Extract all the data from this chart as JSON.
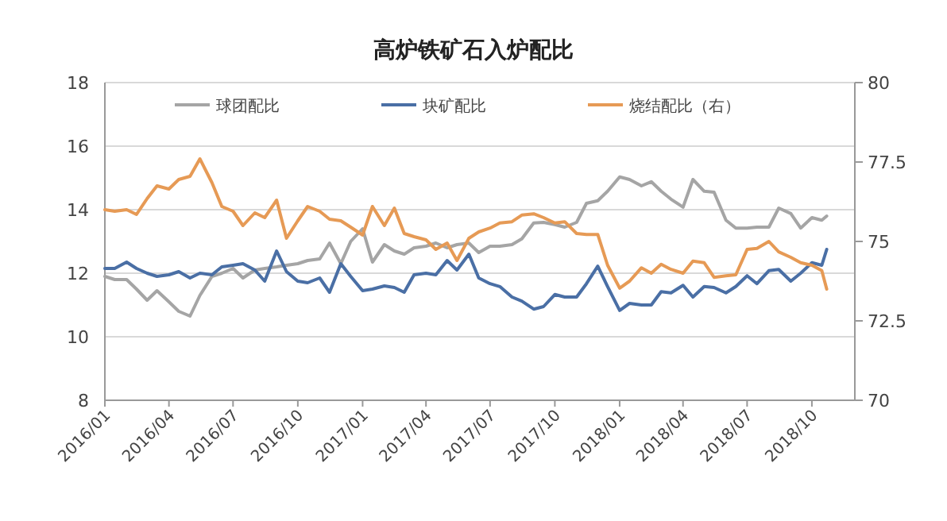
{
  "chart_data": {
    "type": "line",
    "title": "高炉铁矿石入炉配比",
    "x": [
      "2016-01-01",
      "2016-01-15",
      "2016-02-01",
      "2016-02-15",
      "2016-03-01",
      "2016-03-15",
      "2016-04-01",
      "2016-04-15",
      "2016-05-01",
      "2016-05-15",
      "2016-06-01",
      "2016-06-15",
      "2016-07-01",
      "2016-07-15",
      "2016-08-01",
      "2016-08-15",
      "2016-09-01",
      "2016-09-15",
      "2016-10-01",
      "2016-10-15",
      "2016-11-01",
      "2016-11-15",
      "2016-12-01",
      "2016-12-15",
      "2017-01-01",
      "2017-01-15",
      "2017-02-01",
      "2017-02-15",
      "2017-03-01",
      "2017-03-15",
      "2017-04-01",
      "2017-04-15",
      "2017-05-01",
      "2017-05-15",
      "2017-06-01",
      "2017-06-15",
      "2017-07-01",
      "2017-07-15",
      "2017-08-01",
      "2017-08-15",
      "2017-09-01",
      "2017-09-15",
      "2017-10-01",
      "2017-10-15",
      "2017-11-01",
      "2017-11-15",
      "2017-12-01",
      "2017-12-15",
      "2018-01-01",
      "2018-01-15",
      "2018-02-01",
      "2018-02-15",
      "2018-03-01",
      "2018-03-15",
      "2018-04-01",
      "2018-04-15",
      "2018-05-01",
      "2018-05-15",
      "2018-06-01",
      "2018-06-15",
      "2018-07-01",
      "2018-07-15",
      "2018-08-01",
      "2018-08-15",
      "2018-09-01",
      "2018-09-15",
      "2018-10-01",
      "2018-10-15",
      "2018-10-22"
    ],
    "series": [
      {
        "name": "球团配比",
        "color": "#a5a5a5",
        "values": [
          11.9,
          11.8,
          11.8,
          11.5,
          11.15,
          11.45,
          11.1,
          10.8,
          10.65,
          11.3,
          11.9,
          12.0,
          12.15,
          11.85,
          12.1,
          12.15,
          12.2,
          12.25,
          12.3,
          12.4,
          12.45,
          12.95,
          12.3,
          13.0,
          13.4,
          12.35,
          12.9,
          12.7,
          12.6,
          12.8,
          12.85,
          12.95,
          12.8,
          12.9,
          12.95,
          12.65,
          12.85,
          12.85,
          12.9,
          13.08,
          13.58,
          13.6,
          13.53,
          13.45,
          13.6,
          14.2,
          14.28,
          14.58,
          15.03,
          14.95,
          14.75,
          14.88,
          14.58,
          14.33,
          14.08,
          14.95,
          14.58,
          14.55,
          13.67,
          13.42,
          13.42,
          13.45,
          13.45,
          14.05,
          13.88,
          13.42,
          13.75,
          13.67,
          13.8
        ]
      },
      {
        "name": "块矿配比",
        "color": "#4a6fa5",
        "values": [
          12.15,
          12.15,
          12.35,
          12.15,
          12.0,
          11.9,
          11.95,
          12.05,
          11.85,
          12.0,
          11.95,
          12.2,
          12.25,
          12.3,
          12.1,
          11.75,
          12.7,
          12.05,
          11.75,
          11.7,
          11.85,
          11.4,
          12.3,
          11.9,
          11.45,
          11.5,
          11.6,
          11.55,
          11.4,
          11.95,
          12.0,
          11.95,
          12.4,
          12.1,
          12.6,
          11.85,
          11.67,
          11.58,
          11.25,
          11.12,
          10.87,
          10.95,
          11.33,
          11.25,
          11.25,
          11.67,
          12.22,
          11.58,
          10.83,
          11.05,
          11.0,
          11.0,
          11.42,
          11.38,
          11.62,
          11.25,
          11.58,
          11.55,
          11.38,
          11.58,
          11.92,
          11.67,
          12.08,
          12.12,
          11.75,
          12.0,
          12.33,
          12.25,
          12.75
        ]
      },
      {
        "name": "烧结配比（右）",
        "color": "#e69a55",
        "axis": "y2",
        "values": [
          76.0,
          75.95,
          76.0,
          75.85,
          76.35,
          76.75,
          76.65,
          76.95,
          77.05,
          77.6,
          76.85,
          76.1,
          75.95,
          75.5,
          75.9,
          75.75,
          76.3,
          75.1,
          75.65,
          76.1,
          75.95,
          75.7,
          75.65,
          75.45,
          75.2,
          76.1,
          75.5,
          76.05,
          75.25,
          75.15,
          75.05,
          74.75,
          74.95,
          74.4,
          75.1,
          75.3,
          75.42,
          75.58,
          75.62,
          75.83,
          75.87,
          75.75,
          75.58,
          75.62,
          75.25,
          75.22,
          75.22,
          74.25,
          73.53,
          73.75,
          74.17,
          74.0,
          74.28,
          74.12,
          74.0,
          74.38,
          74.33,
          73.87,
          73.92,
          73.95,
          74.75,
          74.78,
          75.0,
          74.67,
          74.5,
          74.33,
          74.25,
          74.08,
          73.5
        ]
      }
    ],
    "xlim": [
      "2016-01-01",
      "2018-12-01"
    ],
    "xticks": [
      {
        "value": "2016-01-01",
        "label": "2016/01"
      },
      {
        "value": "2016-04-01",
        "label": "2016/04"
      },
      {
        "value": "2016-07-01",
        "label": "2016/07"
      },
      {
        "value": "2016-10-01",
        "label": "2016/10"
      },
      {
        "value": "2017-01-01",
        "label": "2017/01"
      },
      {
        "value": "2017-04-01",
        "label": "2017/04"
      },
      {
        "value": "2017-07-01",
        "label": "2017/07"
      },
      {
        "value": "2017-10-01",
        "label": "2017/10"
      },
      {
        "value": "2018-01-01",
        "label": "2018/01"
      },
      {
        "value": "2018-04-01",
        "label": "2018/04"
      },
      {
        "value": "2018-07-01",
        "label": "2018/07"
      },
      {
        "value": "2018-10-01",
        "label": "2018/10"
      }
    ],
    "ylim": [
      8,
      18
    ],
    "yticks": [
      8,
      10,
      12,
      14,
      16,
      18
    ],
    "y2lim": [
      70,
      80
    ],
    "y2ticks": [
      70,
      72.5,
      75,
      77.5,
      80
    ],
    "grid": "y",
    "legend": "top",
    "marker": "none",
    "line_style": "solid"
  }
}
